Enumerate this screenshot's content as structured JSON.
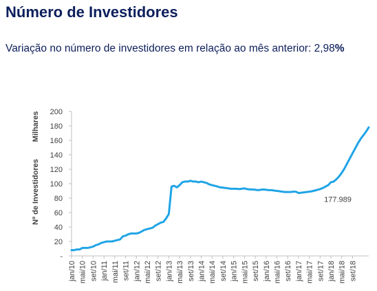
{
  "header": {
    "title": "Número de Investidores",
    "subtitle_text": "Variação no número de investidores em relação ao mês anterior: 2,98",
    "subtitle_pct": "%"
  },
  "chart_data": {
    "type": "line",
    "ylabel": "Nº de Investidores",
    "yunit": "Milhares",
    "ylim": [
      0,
      200
    ],
    "yticks": [
      0,
      20,
      40,
      60,
      80,
      100,
      120,
      140,
      160,
      180,
      200
    ],
    "ytick_labels": [
      "-",
      "20",
      "40",
      "60",
      "80",
      "100",
      "120",
      "140",
      "160",
      "180",
      "200"
    ],
    "xtick_labels": [
      "jan/10",
      "mai/10",
      "set/10",
      "jan/11",
      "mai/11",
      "set/11",
      "jan/12",
      "mai/12",
      "set/12",
      "jan/13",
      "mai/13",
      "set/13",
      "jan/14",
      "mai/14",
      "set/14",
      "jan/15",
      "mai/15",
      "set/15",
      "jan/16",
      "mai/16",
      "set/16",
      "jan/17",
      "mai/17",
      "set/17",
      "jan/18",
      "mai/18",
      "set/18"
    ],
    "annotation": "177.989",
    "series_color": "#1fa4e6",
    "x_start": "jan/10",
    "values": [
      8,
      8,
      9,
      9,
      11,
      11,
      11,
      12,
      13,
      15,
      16,
      18,
      19,
      20,
      20,
      20,
      21,
      22,
      23,
      27,
      28,
      30,
      31,
      31,
      31,
      32,
      34,
      36,
      37,
      38,
      39,
      42,
      44,
      46,
      47,
      52,
      58,
      96,
      97,
      95,
      98,
      102,
      103,
      103,
      104,
      103,
      103,
      102,
      103,
      102,
      101,
      99,
      98,
      97,
      96,
      95,
      94.5,
      94,
      93.5,
      93,
      93,
      93,
      92.5,
      93,
      93.5,
      92.5,
      92,
      92,
      91.5,
      91,
      91.5,
      92,
      91.5,
      91,
      91,
      90.5,
      90,
      89.5,
      89,
      88.5,
      88.5,
      88.5,
      89,
      89,
      87,
      87.5,
      88,
      88.5,
      89,
      89.5,
      90.5,
      91.5,
      92.5,
      94,
      96,
      98,
      102,
      103,
      106,
      110,
      115,
      121,
      128,
      135,
      142,
      149,
      156,
      162,
      167,
      172,
      177.989
    ]
  }
}
